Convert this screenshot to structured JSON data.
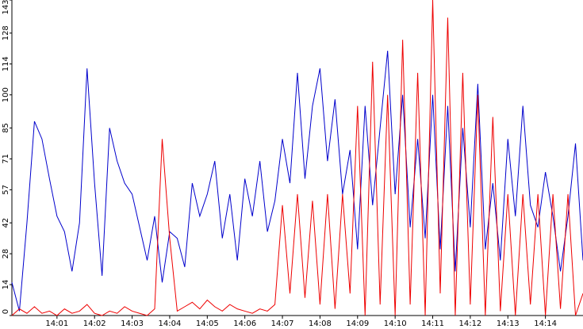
{
  "chart_data": {
    "type": "line",
    "x": [
      -0.2,
      0,
      0.2,
      0.4,
      0.6,
      0.8,
      1.0,
      1.2,
      1.4,
      1.6,
      1.8,
      2.0,
      2.2,
      2.4,
      2.6,
      2.8,
      3.0,
      3.2,
      3.4,
      3.6,
      3.8,
      4.0,
      4.2,
      4.4,
      4.6,
      4.8,
      5.0,
      5.2,
      5.4,
      5.6,
      5.8,
      6.0,
      6.2,
      6.4,
      6.6,
      6.8,
      7.0,
      7.2,
      7.4,
      7.6,
      7.8,
      8.0,
      8.2,
      8.4,
      8.6,
      8.8,
      9.0,
      9.2,
      9.4,
      9.6,
      9.8,
      10.0,
      10.2,
      10.4,
      10.6,
      10.8,
      11.0,
      11.2,
      11.4,
      11.6,
      11.8,
      12.0,
      12.2,
      12.4,
      12.6,
      12.8,
      13.0,
      13.2,
      13.4,
      13.6,
      13.8,
      14.0,
      14.2,
      14.4,
      14.6,
      14.8,
      15.0
    ],
    "series": [
      {
        "color": "#0000cc",
        "values": [
          15,
          2,
          42,
          88,
          80,
          62,
          45,
          38,
          20,
          42,
          112,
          60,
          18,
          85,
          70,
          60,
          55,
          40,
          25,
          45,
          15,
          38,
          35,
          22,
          60,
          45,
          55,
          70,
          35,
          55,
          25,
          62,
          45,
          70,
          38,
          52,
          80,
          60,
          110,
          62,
          95,
          112,
          70,
          98,
          55,
          75,
          30,
          95,
          50,
          85,
          120,
          55,
          100,
          40,
          80,
          35,
          100,
          30,
          95,
          20,
          85,
          40,
          105,
          30,
          60,
          25,
          80,
          45,
          95,
          50,
          40,
          65,
          45,
          20,
          45,
          78,
          25
        ]
      },
      {
        "color": "#ee0000",
        "values": [
          0,
          3,
          1,
          4,
          1,
          2,
          0,
          3,
          1,
          2,
          5,
          1,
          0,
          2,
          1,
          4,
          2,
          1,
          0,
          3,
          80,
          35,
          2,
          4,
          6,
          3,
          7,
          4,
          2,
          5,
          3,
          2,
          1,
          3,
          2,
          5,
          50,
          10,
          55,
          8,
          52,
          5,
          55,
          3,
          55,
          10,
          95,
          0,
          115,
          5,
          100,
          0,
          125,
          5,
          110,
          0,
          143,
          10,
          135,
          0,
          110,
          5,
          100,
          0,
          90,
          2,
          55,
          0,
          55,
          5,
          55,
          0,
          55,
          3,
          55,
          0,
          10
        ]
      }
    ],
    "xlim": [
      -0.2,
      15.0
    ],
    "xticks": [
      {
        "value": 1,
        "label": "14:01"
      },
      {
        "value": 2,
        "label": "14:02"
      },
      {
        "value": 3,
        "label": "14:03"
      },
      {
        "value": 4,
        "label": "14:04"
      },
      {
        "value": 5,
        "label": "14:05"
      },
      {
        "value": 6,
        "label": "14:06"
      },
      {
        "value": 7,
        "label": "14:07"
      },
      {
        "value": 8,
        "label": "14:08"
      },
      {
        "value": 9,
        "label": "14:09"
      },
      {
        "value": 10,
        "label": "14:10"
      },
      {
        "value": 11,
        "label": "14:11"
      },
      {
        "value": 12,
        "label": "14:12"
      },
      {
        "value": 13,
        "label": "14:13"
      },
      {
        "value": 14,
        "label": "14:14"
      }
    ],
    "ylim": [
      0,
      143
    ],
    "yticks": [
      0,
      14,
      28,
      42,
      57,
      71,
      85,
      100,
      114,
      128,
      143
    ]
  }
}
